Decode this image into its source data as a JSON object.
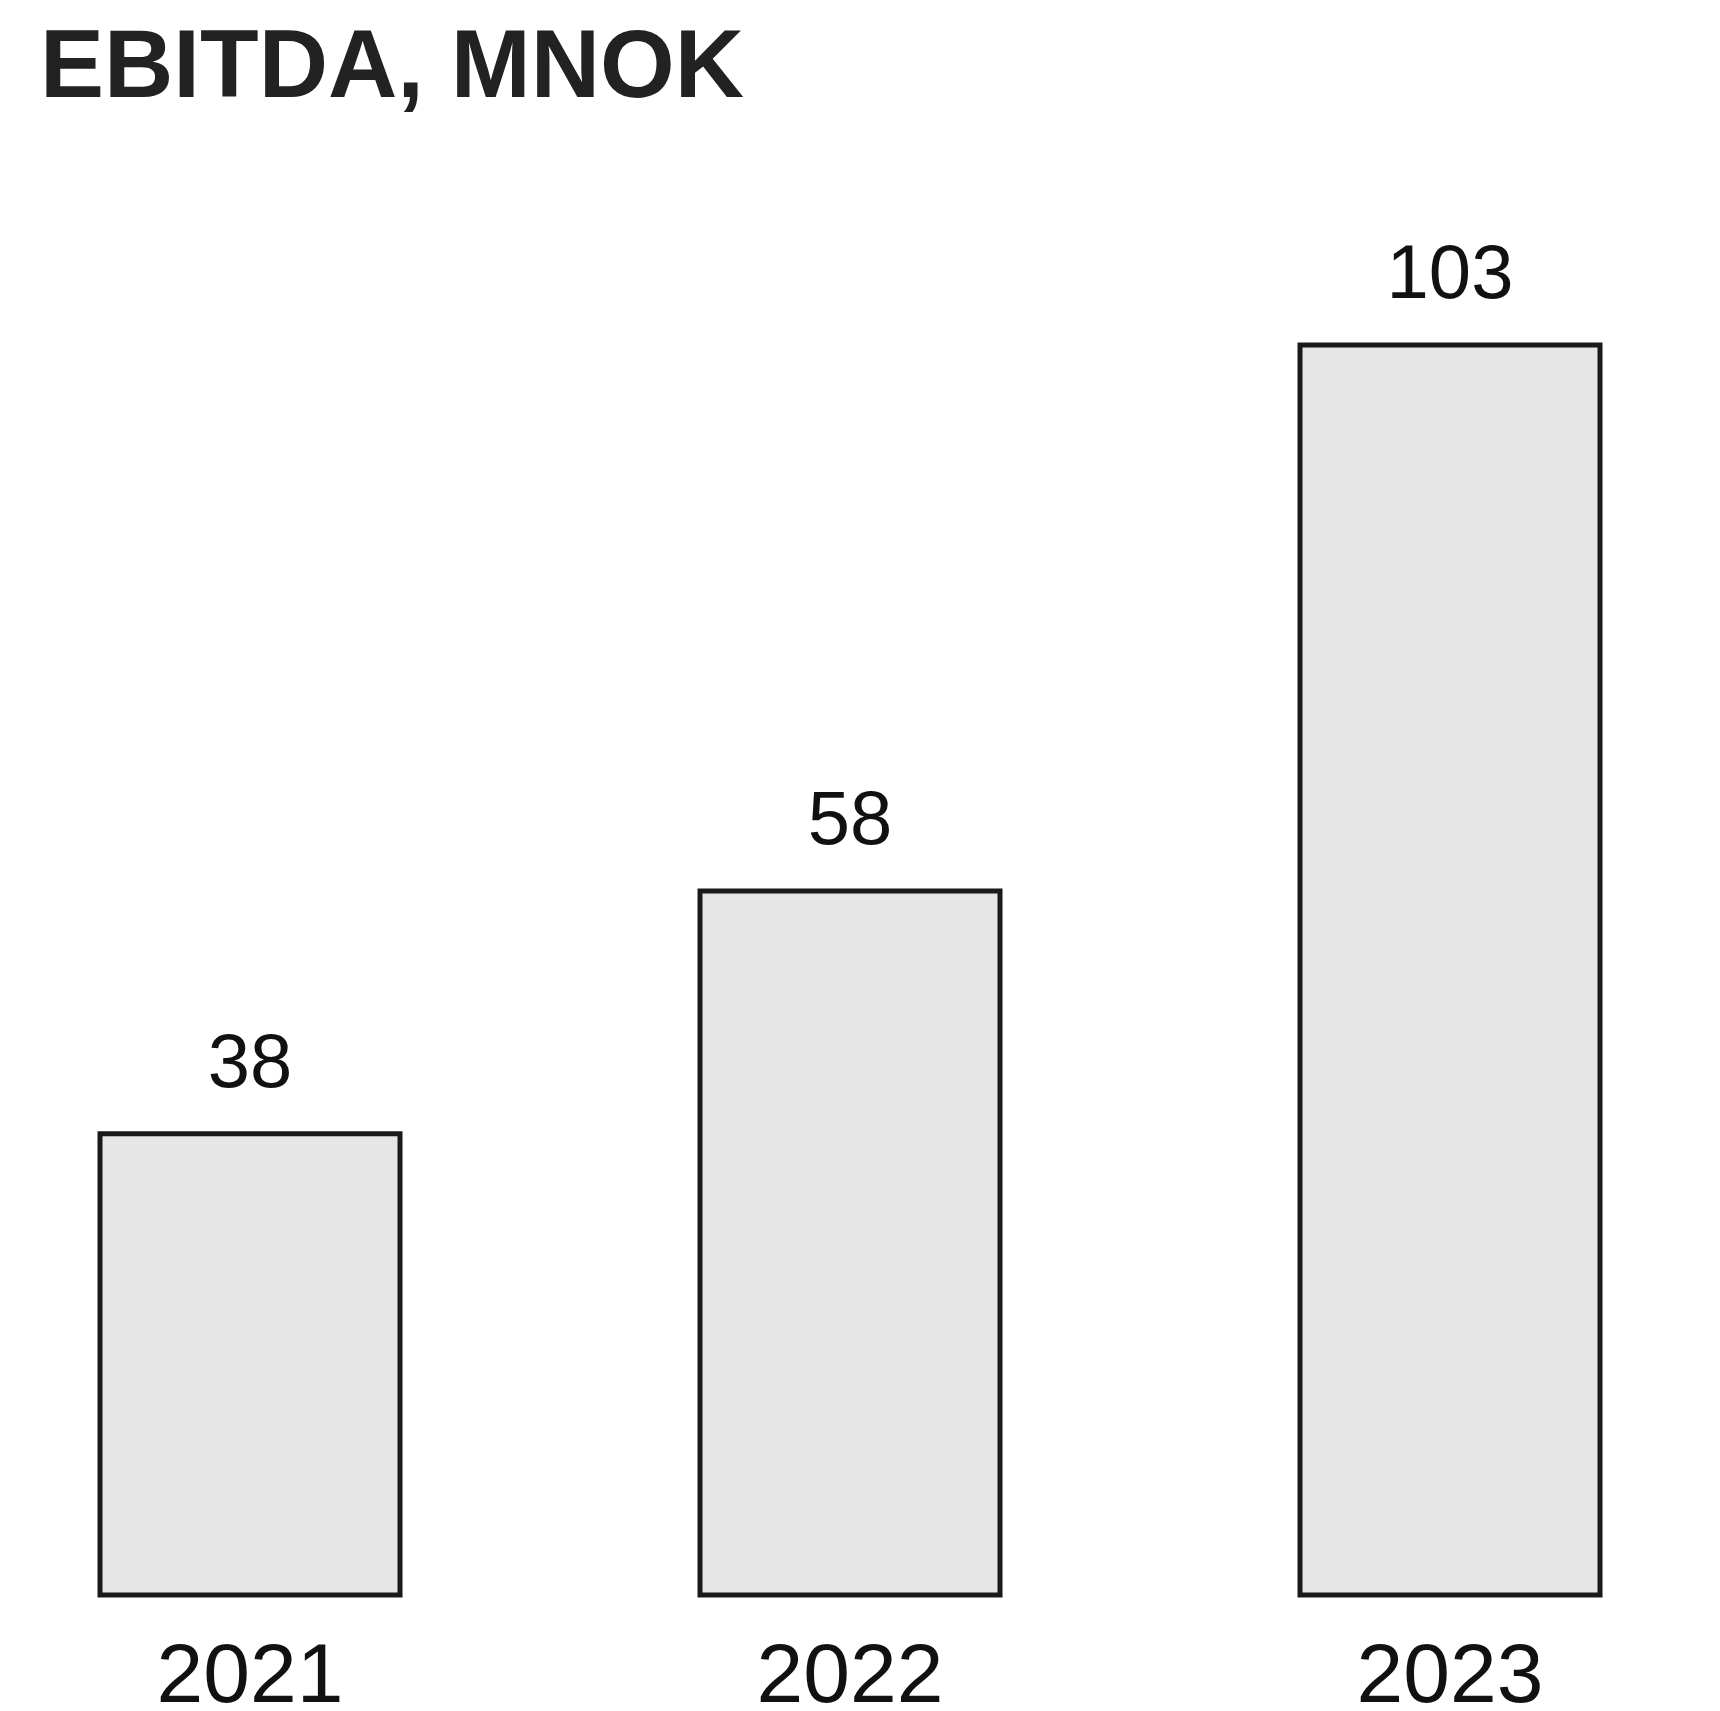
{
  "chart_data": {
    "type": "bar",
    "title": "EBITDA, MNOK",
    "categories": [
      "2021",
      "2022",
      "2023"
    ],
    "values": [
      38,
      58,
      103
    ],
    "color": "#e6e6e6",
    "data_labels": true
  }
}
